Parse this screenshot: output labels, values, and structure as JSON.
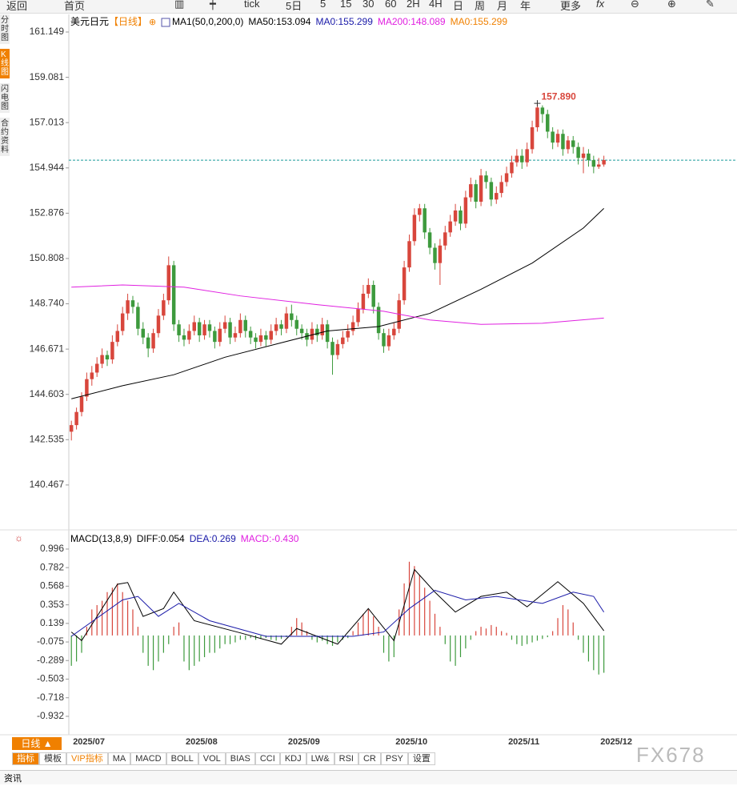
{
  "toolbar": [
    "返回",
    "首页",
    "tick",
    "5日",
    "5",
    "15",
    "30",
    "60",
    "2H",
    "4H",
    "日",
    "周",
    "月",
    "年",
    "更多"
  ],
  "sidebar": [
    "分时图",
    "K线图",
    "闪电图",
    "合约资料"
  ],
  "period_button": "日线 ▲",
  "tabs": [
    "指标",
    "模板",
    "VIP指标",
    "MA",
    "MACD",
    "BOLL",
    "VOL",
    "BIAS",
    "CCI",
    "KDJ",
    "LW&",
    "RSI",
    "CR",
    "PSY",
    "设置"
  ],
  "footer": "资讯",
  "watermark": "FX678",
  "chart_data": [
    {
      "type": "candlestick",
      "title": "美元日元",
      "period": "【日线】",
      "legend": [
        {
          "label": "MA1(50,0,200,0)",
          "color": "#000000"
        },
        {
          "label": "MA50:153.094",
          "color": "#000000"
        },
        {
          "label": "MA0:155.299",
          "color": "#1a1aa8",
          "value": 155.299
        },
        {
          "label": "MA200:148.089",
          "color": "#e020e0"
        },
        {
          "label": "MA0:155.299",
          "color": "#f08000"
        }
      ],
      "up_color": "#d8463c",
      "down_color": "#3d9a3d",
      "last_line_color": "#1a9a9a",
      "xlim": [
        -0.5,
        130
      ],
      "ylim": [
        138.49,
        161.88
      ],
      "yticks": [
        161.149,
        159.081,
        157.013,
        154.944,
        152.876,
        150.808,
        {
          "value": 148.74,
          "label": "148.740"
        },
        146.671,
        144.603,
        142.535,
        140.467
      ],
      "ohlc": [
        [
          142.9,
          143.4,
          142.5,
          143.2
        ],
        [
          143.2,
          144.0,
          143.0,
          143.8
        ],
        [
          143.8,
          144.7,
          143.6,
          144.5
        ],
        [
          144.5,
          145.6,
          144.3,
          145.3
        ],
        [
          145.3,
          145.9,
          145.0,
          145.6
        ],
        [
          145.6,
          146.3,
          145.4,
          146.0
        ],
        [
          146.0,
          146.7,
          145.8,
          146.4
        ],
        [
          146.4,
          146.6,
          145.9,
          146.2
        ],
        [
          146.2,
          147.3,
          146.0,
          147.0
        ],
        [
          147.0,
          147.8,
          146.8,
          147.5
        ],
        [
          147.5,
          148.6,
          147.3,
          148.3
        ],
        [
          148.3,
          149.2,
          148.0,
          148.9
        ],
        [
          148.9,
          149.1,
          148.3,
          148.6
        ],
        [
          148.6,
          148.8,
          147.3,
          147.6
        ],
        [
          147.6,
          147.9,
          146.9,
          147.2
        ],
        [
          147.2,
          147.4,
          146.3,
          146.7
        ],
        [
          146.7,
          147.6,
          146.5,
          147.4
        ],
        [
          147.4,
          148.5,
          147.2,
          148.2
        ],
        [
          148.2,
          149.2,
          148.0,
          148.9
        ],
        [
          148.9,
          150.9,
          148.7,
          150.5
        ],
        [
          150.5,
          150.7,
          147.5,
          147.8
        ],
        [
          147.8,
          148.0,
          147.0,
          147.3
        ],
        [
          147.3,
          147.6,
          146.8,
          147.1
        ],
        [
          147.1,
          147.8,
          146.9,
          147.5
        ],
        [
          147.5,
          148.2,
          147.3,
          147.9
        ],
        [
          147.9,
          148.1,
          147.0,
          147.3
        ],
        [
          147.3,
          148.0,
          147.1,
          147.8
        ],
        [
          147.8,
          148.0,
          147.2,
          147.5
        ],
        [
          147.5,
          147.7,
          146.7,
          147.0
        ],
        [
          147.0,
          147.9,
          146.8,
          147.6
        ],
        [
          147.6,
          148.2,
          147.4,
          147.9
        ],
        [
          147.9,
          148.1,
          146.9,
          147.2
        ],
        [
          147.2,
          147.7,
          147.0,
          147.4
        ],
        [
          147.4,
          148.3,
          147.2,
          148.0
        ],
        [
          148.0,
          148.2,
          147.2,
          147.5
        ],
        [
          147.5,
          147.7,
          146.9,
          147.2
        ],
        [
          147.2,
          147.4,
          146.7,
          147.0
        ],
        [
          147.0,
          147.6,
          146.8,
          147.3
        ],
        [
          147.3,
          147.5,
          146.8,
          147.1
        ],
        [
          147.1,
          147.8,
          146.9,
          147.5
        ],
        [
          147.5,
          148.1,
          147.3,
          147.8
        ],
        [
          147.8,
          148.0,
          147.3,
          147.6
        ],
        [
          147.6,
          148.6,
          147.4,
          148.3
        ],
        [
          148.3,
          148.7,
          147.7,
          148.0
        ],
        [
          148.0,
          148.2,
          147.3,
          147.6
        ],
        [
          147.6,
          147.8,
          147.1,
          147.4
        ],
        [
          147.4,
          147.6,
          146.8,
          147.1
        ],
        [
          147.1,
          147.9,
          146.9,
          147.6
        ],
        [
          147.6,
          147.8,
          147.0,
          147.3
        ],
        [
          147.3,
          148.1,
          147.1,
          147.8
        ],
        [
          147.8,
          148.0,
          146.7,
          147.0
        ],
        [
          147.0,
          147.2,
          145.5,
          146.4
        ],
        [
          146.4,
          147.1,
          146.2,
          146.9
        ],
        [
          146.9,
          147.5,
          146.7,
          147.2
        ],
        [
          147.2,
          147.8,
          147.0,
          147.5
        ],
        [
          147.5,
          148.2,
          147.3,
          147.9
        ],
        [
          147.9,
          148.8,
          147.7,
          148.5
        ],
        [
          148.5,
          149.6,
          148.3,
          149.2
        ],
        [
          149.2,
          149.9,
          149.0,
          149.6
        ],
        [
          149.6,
          149.8,
          148.3,
          148.6
        ],
        [
          148.6,
          148.8,
          147.1,
          147.4
        ],
        [
          147.4,
          147.6,
          146.5,
          146.8
        ],
        [
          146.8,
          147.6,
          146.6,
          147.3
        ],
        [
          147.3,
          147.9,
          147.1,
          147.6
        ],
        [
          147.6,
          149.2,
          147.4,
          148.9
        ],
        [
          148.9,
          150.7,
          148.7,
          150.4
        ],
        [
          150.4,
          151.9,
          150.2,
          151.6
        ],
        [
          151.6,
          153.1,
          151.4,
          152.8
        ],
        [
          152.8,
          153.3,
          152.5,
          153.1
        ],
        [
          153.1,
          153.3,
          151.7,
          152.0
        ],
        [
          152.0,
          152.2,
          151.0,
          151.3
        ],
        [
          151.3,
          151.5,
          150.3,
          150.6
        ],
        [
          150.6,
          151.7,
          149.6,
          151.4
        ],
        [
          151.4,
          152.3,
          151.2,
          152.0
        ],
        [
          152.0,
          152.8,
          151.8,
          152.5
        ],
        [
          152.5,
          153.3,
          152.3,
          153.0
        ],
        [
          153.0,
          153.2,
          152.1,
          152.4
        ],
        [
          152.4,
          153.9,
          152.2,
          153.6
        ],
        [
          153.6,
          154.5,
          153.4,
          154.2
        ],
        [
          154.2,
          154.4,
          153.1,
          153.4
        ],
        [
          153.4,
          154.9,
          153.2,
          154.6
        ],
        [
          154.6,
          154.8,
          154.0,
          154.3
        ],
        [
          154.3,
          154.5,
          153.2,
          153.5
        ],
        [
          153.5,
          154.1,
          153.3,
          153.8
        ],
        [
          153.8,
          154.6,
          153.6,
          154.3
        ],
        [
          154.3,
          155.0,
          154.1,
          154.7
        ],
        [
          154.7,
          155.5,
          154.5,
          155.2
        ],
        [
          155.2,
          155.8,
          155.0,
          155.5
        ],
        [
          155.5,
          155.8,
          154.9,
          155.2
        ],
        [
          155.2,
          156.1,
          155.0,
          155.8
        ],
        [
          155.8,
          157.1,
          155.6,
          156.8
        ],
        [
          156.8,
          157.89,
          156.6,
          157.7
        ],
        [
          157.7,
          157.8,
          157.0,
          157.4
        ],
        [
          157.4,
          157.6,
          156.3,
          156.6
        ],
        [
          156.6,
          156.8,
          155.8,
          156.1
        ],
        [
          156.1,
          156.7,
          155.9,
          156.5
        ],
        [
          156.5,
          156.7,
          155.5,
          155.8
        ],
        [
          155.8,
          156.4,
          155.6,
          156.2
        ],
        [
          156.2,
          156.4,
          155.6,
          155.9
        ],
        [
          155.9,
          156.1,
          155.1,
          155.4
        ],
        [
          155.4,
          155.9,
          154.7,
          155.6
        ],
        [
          155.6,
          155.8,
          155.0,
          155.3
        ],
        [
          155.3,
          155.5,
          154.7,
          155.0
        ],
        [
          155.0,
          155.4,
          154.9,
          155.1
        ],
        [
          155.1,
          155.5,
          155.0,
          155.3
        ]
      ],
      "series": [
        {
          "color": "#000000",
          "x": [
            0,
            10,
            20,
            30,
            40,
            50,
            60,
            70,
            80,
            90,
            100,
            104
          ],
          "values": [
            144.4,
            145.0,
            145.5,
            146.3,
            146.9,
            147.5,
            147.7,
            148.3,
            149.4,
            150.6,
            152.2,
            153.094
          ]
        },
        {
          "color": "#e020e0",
          "x": [
            0,
            10,
            22,
            33,
            48,
            61,
            70,
            80,
            92,
            104
          ],
          "values": [
            149.5,
            149.6,
            149.5,
            149.1,
            148.7,
            148.4,
            148.0,
            147.8,
            147.85,
            148.089
          ]
        }
      ],
      "annotations": [
        {
          "text": "157.890",
          "index": 91,
          "value": 157.89
        }
      ]
    },
    {
      "type": "macd",
      "legend": [
        {
          "label": "MACD(13,8,9)",
          "color": "#000000"
        },
        {
          "label": "DIFF:0.054",
          "color": "#000000"
        },
        {
          "label": "DEA:0.269",
          "color": "#1a1aa8"
        },
        {
          "label": "MACD:-0.430",
          "color": "#e020e0"
        }
      ],
      "up_color": "#d8463c",
      "down_color": "#3d9a3d",
      "xlim": [
        -0.5,
        130
      ],
      "ylim": [
        -1.117,
        1.051
      ],
      "yticks": [
        0.996,
        0.782,
        0.568,
        0.353,
        0.139,
        -0.075,
        -0.289,
        -0.503,
        -0.718,
        -0.932
      ],
      "xticks": [
        {
          "value": 0,
          "label": "2025/07"
        },
        {
          "value": 22,
          "label": "2025/08"
        },
        {
          "value": 42,
          "label": "2025/09"
        },
        {
          "value": 63,
          "label": "2025/10"
        },
        {
          "value": 85,
          "label": "2025/11"
        },
        {
          "value": 103,
          "label": "2025/12"
        }
      ],
      "values": [
        -0.35,
        -0.3,
        -0.2,
        0.1,
        0.3,
        0.35,
        0.4,
        0.5,
        0.55,
        0.6,
        0.5,
        0.4,
        0.3,
        0.1,
        -0.2,
        -0.35,
        -0.4,
        -0.3,
        -0.2,
        -0.1,
        0.1,
        0.15,
        -0.3,
        -0.4,
        -0.35,
        -0.3,
        -0.25,
        -0.2,
        -0.2,
        -0.15,
        -0.1,
        -0.1,
        -0.08,
        -0.05,
        -0.05,
        -0.03,
        -0.05,
        -0.04,
        -0.03,
        -0.05,
        -0.06,
        -0.04,
        -0.02,
        0.1,
        0.2,
        0.15,
        0.05,
        -0.05,
        -0.08,
        -0.06,
        -0.1,
        -0.12,
        -0.08,
        -0.05,
        -0.03,
        0.05,
        0.15,
        0.25,
        0.3,
        0.22,
        0.1,
        -0.2,
        -0.3,
        -0.25,
        0.3,
        0.6,
        0.85,
        0.8,
        0.7,
        0.55,
        0.4,
        0.25,
        0.1,
        -0.1,
        -0.3,
        -0.35,
        -0.25,
        -0.15,
        -0.05,
        0.05,
        0.1,
        0.08,
        0.12,
        0.1,
        0.05,
        0.03,
        -0.05,
        -0.1,
        -0.12,
        -0.1,
        -0.08,
        -0.06,
        -0.04,
        -0.02,
        0.05,
        0.2,
        0.35,
        0.3,
        0.15,
        -0.05,
        -0.2,
        -0.3,
        -0.4,
        -0.45,
        -0.43
      ],
      "series": [
        {
          "color": "#000000",
          "x": [
            0,
            2,
            9,
            11,
            14,
            18,
            20,
            24,
            33,
            41,
            44,
            52,
            58,
            63,
            67,
            71,
            75,
            80,
            85,
            89,
            95,
            100,
            104
          ],
          "values": [
            0.04,
            -0.06,
            0.59,
            0.61,
            0.22,
            0.31,
            0.5,
            0.17,
            0.03,
            -0.1,
            0.08,
            -0.1,
            0.31,
            -0.06,
            0.76,
            0.5,
            0.27,
            0.45,
            0.5,
            0.33,
            0.62,
            0.37,
            0.054
          ]
        },
        {
          "color": "#1a1aa8",
          "x": [
            0,
            10,
            13,
            17,
            21,
            27,
            38,
            45,
            55,
            61,
            66,
            71,
            77,
            83,
            92,
            98,
            102,
            104
          ],
          "values": [
            -0.01,
            0.41,
            0.45,
            0.22,
            0.37,
            0.17,
            -0.01,
            -0.01,
            -0.01,
            0.04,
            0.31,
            0.52,
            0.41,
            0.45,
            0.37,
            0.5,
            0.45,
            0.269
          ]
        }
      ]
    }
  ]
}
